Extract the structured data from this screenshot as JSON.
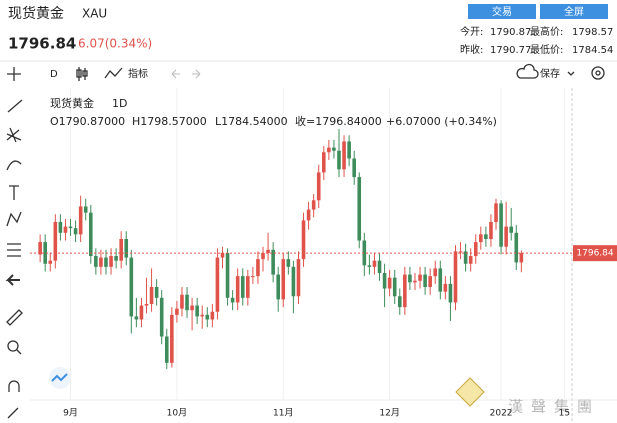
{
  "header": {
    "title": "现货黄金",
    "symbol": "XAU",
    "price": "1796.84",
    "change": "6.07(0.34%)",
    "buttons": [
      "交易",
      "全屏"
    ],
    "stats": [
      [
        "今开:",
        "1790.87",
        "最高价:",
        "1798.57"
      ],
      [
        "昨收:",
        "1790.77",
        "最低价:",
        "1784.54"
      ]
    ]
  },
  "toolbar": {
    "interval": "D",
    "indicators": "指标",
    "save": "保存"
  },
  "watermark": "漢聲集團",
  "chart_data": {
    "type": "candlestick",
    "legend": {
      "symbol": "现货黄金",
      "interval": "1D",
      "items": [
        "O1790.87000",
        "H1798.57000",
        "L1784.54000",
        "收=1796.84000",
        "+6.07000 (+0.34%)"
      ]
    },
    "up_color": "#e0534b",
    "down_color": "#3e8c5c",
    "price_line_color": "#e0534b",
    "grid": true,
    "xlim": [
      -2,
      105
    ],
    "ylim": [
      1702,
      1899
    ],
    "xticks": [
      {
        "value": 6,
        "label": "9月"
      },
      {
        "value": 27,
        "label": "10月"
      },
      {
        "value": 48,
        "label": "11月"
      },
      {
        "value": 69,
        "label": "12月"
      },
      {
        "value": 91,
        "label": "2022"
      },
      {
        "value": 103.5,
        "label": "15"
      }
    ],
    "last_price": 1796.84,
    "open": [
      1796,
      1804,
      1790,
      1792,
      1817,
      1810,
      1814,
      1813,
      1809,
      1827,
      1823,
      1795,
      1788,
      1794,
      1788,
      1795,
      1792,
      1806,
      1794,
      1756,
      1754,
      1763,
      1764,
      1775,
      1768,
      1743,
      1726,
      1757,
      1761,
      1770,
      1760,
      1763,
      1756,
      1757,
      1754,
      1759,
      1794,
      1797,
      1768,
      1765,
      1782,
      1768,
      1782,
      1782,
      1793,
      1797,
      1799,
      1783,
      1767,
      1793,
      1788,
      1769,
      1793,
      1818,
      1825,
      1831,
      1849,
      1862,
      1865,
      1863,
      1851,
      1869,
      1858,
      1846,
      1805,
      1789,
      1788,
      1792,
      1784,
      1774,
      1781,
      1769,
      1762,
      1783,
      1778,
      1779,
      1783,
      1775,
      1782,
      1787,
      1772,
      1777,
      1765,
      1798,
      1798,
      1790,
      1795,
      1804,
      1809,
      1806,
      1817,
      1829,
      1801,
      1814,
      1810,
      1790.87
    ],
    "high": [
      1809,
      1809,
      1797,
      1822,
      1822,
      1819,
      1819,
      1818,
      1834,
      1832,
      1828,
      1800,
      1799,
      1799,
      1800,
      1800,
      1811,
      1811,
      1799,
      1768,
      1768,
      1781,
      1787,
      1780,
      1773,
      1748,
      1762,
      1766,
      1775,
      1775,
      1768,
      1768,
      1763,
      1762,
      1764,
      1800,
      1801,
      1800,
      1773,
      1787,
      1787,
      1786,
      1788,
      1798,
      1801,
      1810,
      1804,
      1788,
      1797,
      1798,
      1792,
      1798,
      1823,
      1830,
      1835,
      1854,
      1866,
      1870,
      1870,
      1877,
      1873,
      1873,
      1863,
      1849,
      1810,
      1796,
      1797,
      1797,
      1790,
      1786,
      1786,
      1774,
      1788,
      1788,
      1784,
      1788,
      1788,
      1787,
      1792,
      1792,
      1782,
      1782,
      1802,
      1804,
      1803,
      1800,
      1809,
      1814,
      1814,
      1822,
      1832,
      1831,
      1830,
      1826,
      1815,
      1798.57
    ],
    "low": [
      1791,
      1785,
      1785,
      1787,
      1805,
      1805,
      1808,
      1804,
      1804,
      1818,
      1790,
      1783,
      1783,
      1783,
      1783,
      1787,
      1787,
      1789,
      1745,
      1749,
      1749,
      1758,
      1759,
      1763,
      1738,
      1722,
      1723,
      1752,
      1756,
      1755,
      1747,
      1751,
      1748,
      1749,
      1749,
      1754,
      1787,
      1763,
      1760,
      1760,
      1763,
      1763,
      1777,
      1777,
      1785,
      1792,
      1778,
      1759,
      1762,
      1783,
      1758,
      1764,
      1788,
      1812,
      1820,
      1826,
      1844,
      1857,
      1858,
      1846,
      1846,
      1853,
      1841,
      1800,
      1782,
      1783,
      1783,
      1779,
      1762,
      1769,
      1764,
      1757,
      1757,
      1773,
      1773,
      1774,
      1770,
      1770,
      1777,
      1767,
      1767,
      1753,
      1760,
      1793,
      1785,
      1785,
      1790,
      1799,
      1801,
      1801,
      1812,
      1796,
      1796,
      1805,
      1786,
      1784.54
    ],
    "close": [
      1804,
      1790,
      1792,
      1817,
      1810,
      1814,
      1813,
      1809,
      1827,
      1823,
      1795,
      1788,
      1794,
      1788,
      1795,
      1792,
      1806,
      1794,
      1756,
      1754,
      1763,
      1764,
      1775,
      1768,
      1743,
      1726,
      1757,
      1761,
      1770,
      1760,
      1763,
      1756,
      1757,
      1754,
      1759,
      1794,
      1797,
      1768,
      1765,
      1782,
      1768,
      1782,
      1782,
      1793,
      1797,
      1799,
      1783,
      1767,
      1793,
      1788,
      1769,
      1793,
      1818,
      1825,
      1831,
      1849,
      1862,
      1865,
      1863,
      1851,
      1869,
      1858,
      1846,
      1805,
      1789,
      1788,
      1792,
      1784,
      1774,
      1781,
      1769,
      1762,
      1783,
      1778,
      1779,
      1783,
      1775,
      1782,
      1787,
      1772,
      1777,
      1765,
      1798,
      1798,
      1790,
      1795,
      1804,
      1809,
      1806,
      1817,
      1829,
      1801,
      1814,
      1810,
      1790.87,
      1796.84
    ]
  }
}
